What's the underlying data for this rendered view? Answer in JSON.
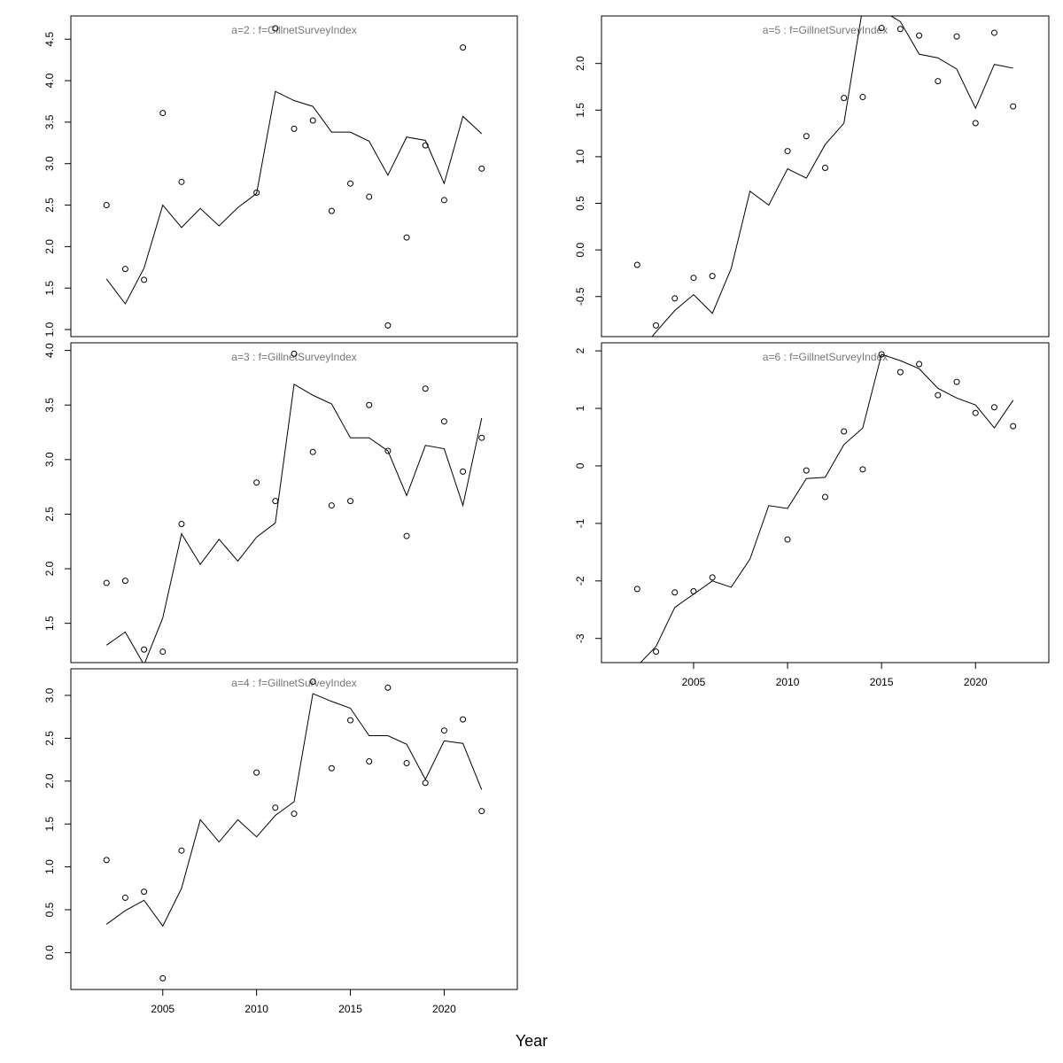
{
  "xlabel": "Year",
  "chart_data": [
    {
      "type": "line",
      "title": "a=2  :  f=GillnetSurveyIndex",
      "color": "#000000",
      "x": [
        2002,
        2003,
        2004,
        2005,
        2006,
        2007,
        2008,
        2009,
        2010,
        2011,
        2012,
        2013,
        2014,
        2015,
        2016,
        2017,
        2018,
        2019,
        2020,
        2021,
        2022
      ],
      "points": [
        2.5,
        1.73,
        1.6,
        3.61,
        2.78,
        null,
        null,
        null,
        2.65,
        4.63,
        3.42,
        3.52,
        2.43,
        2.76,
        2.6,
        1.05,
        2.11,
        3.22,
        2.56,
        4.4,
        2.94
      ],
      "values": [
        1.61,
        1.31,
        1.74,
        2.5,
        2.23,
        2.46,
        2.25,
        2.47,
        2.64,
        3.87,
        3.76,
        3.69,
        3.38,
        3.38,
        3.27,
        2.86,
        3.32,
        3.28,
        2.76,
        3.57,
        3.36
      ],
      "xlim": [
        2000.1,
        2023.9
      ],
      "ylim": [
        0.915,
        4.78
      ],
      "yticks": [
        {
          "value": 1,
          "label": "1.0"
        },
        1.5,
        {
          "value": 2,
          "label": "2.0"
        },
        2.5,
        {
          "value": 3,
          "label": "3.0"
        },
        3.5,
        {
          "value": 4,
          "label": "4.0"
        },
        4.5
      ]
    },
    {
      "type": "line",
      "title": "a=3  :  f=GillnetSurveyIndex",
      "color": "#000000",
      "x": [
        2002,
        2003,
        2004,
        2005,
        2006,
        2007,
        2008,
        2009,
        2010,
        2011,
        2012,
        2013,
        2014,
        2015,
        2016,
        2017,
        2018,
        2019,
        2020,
        2021,
        2022
      ],
      "points": [
        1.87,
        1.89,
        1.26,
        1.24,
        2.41,
        null,
        null,
        null,
        2.79,
        2.62,
        3.97,
        3.07,
        2.58,
        2.62,
        3.5,
        3.08,
        2.3,
        3.65,
        3.35,
        2.89,
        3.2
      ],
      "values": [
        1.3,
        1.42,
        1.12,
        1.55,
        2.32,
        2.04,
        2.27,
        2.07,
        2.29,
        2.42,
        3.69,
        3.59,
        3.51,
        3.2,
        3.2,
        3.08,
        2.67,
        3.13,
        3.1,
        2.58,
        3.38
      ],
      "xlim": [
        2000.1,
        2023.9
      ],
      "ylim": [
        1.14,
        4.07
      ],
      "yticks": [
        1.5,
        {
          "value": 2,
          "label": "2.0"
        },
        2.5,
        {
          "value": 3,
          "label": "3.0"
        },
        3.5,
        {
          "value": 4,
          "label": "4.0"
        }
      ]
    },
    {
      "type": "line",
      "title": "a=4  :  f=GillnetSurveyIndex",
      "color": "#000000",
      "x": [
        2002,
        2003,
        2004,
        2005,
        2006,
        2007,
        2008,
        2009,
        2010,
        2011,
        2012,
        2013,
        2014,
        2015,
        2016,
        2017,
        2018,
        2019,
        2020,
        2021,
        2022
      ],
      "points": [
        1.08,
        0.64,
        0.71,
        -0.3,
        1.19,
        null,
        null,
        null,
        2.1,
        1.69,
        1.62,
        3.16,
        2.15,
        2.71,
        2.23,
        3.09,
        2.21,
        1.98,
        2.59,
        2.72,
        1.65
      ],
      "values": [
        0.33,
        0.49,
        0.61,
        0.31,
        0.75,
        1.55,
        1.29,
        1.55,
        1.35,
        1.6,
        1.76,
        3.02,
        2.93,
        2.85,
        2.53,
        2.53,
        2.43,
        2.02,
        2.47,
        2.44,
        1.9
      ],
      "xlim": [
        2000.1,
        2023.9
      ],
      "ylim": [
        -0.43,
        3.31
      ],
      "yticks": [
        {
          "value": 0,
          "label": "0.0"
        },
        0.5,
        {
          "value": 1,
          "label": "1.0"
        },
        1.5,
        {
          "value": 2,
          "label": "2.0"
        },
        2.5,
        {
          "value": 3,
          "label": "3.0"
        }
      ],
      "xticks": [
        2005,
        2010,
        2015,
        2020
      ]
    },
    {
      "type": "line",
      "title": "a=5  :  f=GillnetSurveyIndex",
      "color": "#000000",
      "x": [
        2002,
        2003,
        2004,
        2005,
        2006,
        2007,
        2008,
        2009,
        2010,
        2011,
        2012,
        2013,
        2014,
        2015,
        2016,
        2017,
        2018,
        2019,
        2020,
        2021,
        2022
      ],
      "points": [
        -0.16,
        -0.81,
        -0.52,
        -0.3,
        -0.28,
        null,
        null,
        null,
        1.06,
        1.22,
        0.88,
        1.63,
        1.64,
        2.38,
        2.37,
        2.3,
        1.81,
        2.29,
        1.36,
        2.33,
        1.54
      ],
      "values": [
        -1.12,
        -0.88,
        -0.65,
        -0.48,
        -0.68,
        -0.2,
        0.63,
        0.48,
        0.87,
        0.77,
        1.13,
        1.36,
        2.6,
        2.57,
        2.45,
        2.1,
        2.06,
        1.94,
        1.52,
        1.99,
        1.95
      ],
      "xlim": [
        2000.1,
        2023.9
      ],
      "ylim": [
        -0.93,
        2.51
      ],
      "yticks": [
        -0.5,
        {
          "value": 0,
          "label": "0.0"
        },
        0.5,
        {
          "value": 1,
          "label": "1.0"
        },
        1.5,
        {
          "value": 2,
          "label": "2.0"
        }
      ]
    },
    {
      "type": "line",
      "title": "a=6  :  f=GillnetSurveyIndex",
      "color": "#000000",
      "x": [
        2002,
        2003,
        2004,
        2005,
        2006,
        2007,
        2008,
        2009,
        2010,
        2011,
        2012,
        2013,
        2014,
        2015,
        2016,
        2017,
        2018,
        2019,
        2020,
        2021,
        2022
      ],
      "points": [
        -2.14,
        -3.23,
        -2.2,
        -2.18,
        -1.94,
        null,
        null,
        null,
        -1.28,
        -0.08,
        -0.54,
        0.6,
        -0.06,
        1.94,
        1.63,
        1.77,
        1.23,
        1.46,
        0.92,
        1.02,
        0.69
      ],
      "values": [
        -3.48,
        -3.14,
        -2.46,
        -2.23,
        -2.0,
        -2.11,
        -1.62,
        -0.69,
        -0.74,
        -0.22,
        -0.2,
        0.37,
        0.66,
        1.94,
        1.83,
        1.69,
        1.35,
        1.18,
        1.06,
        0.66,
        1.14
      ],
      "xlim": [
        2000.1,
        2023.9
      ],
      "ylim": [
        -3.42,
        2.14
      ],
      "yticks": [
        -3,
        -2,
        -1,
        0,
        1,
        2
      ],
      "xticks": [
        2005,
        2010,
        2015,
        2020
      ]
    }
  ]
}
